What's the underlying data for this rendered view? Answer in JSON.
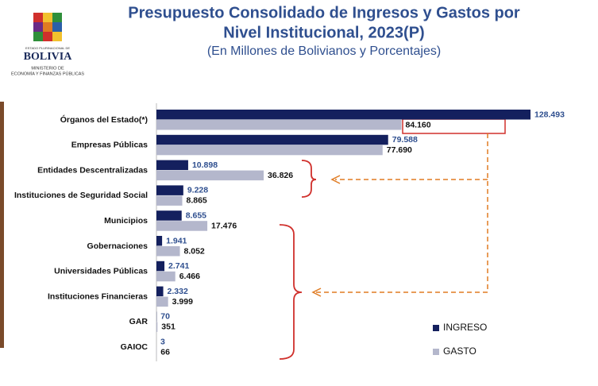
{
  "header": {
    "logo_top": "ESTADO PLURINACIONAL DE",
    "logo_name": "BOLIVIA",
    "logo_ministry": [
      "MINISTERIO DE",
      "ECONOMÍA Y FINANZAS PÚBLICAS"
    ]
  },
  "chart_data": {
    "type": "bar",
    "orientation": "horizontal",
    "title": [
      "Presupuesto Consolidado de Ingresos y Gastos por",
      "Nivel Institucional, 2023(P)"
    ],
    "subtitle": "(En Millones de Bolivianos y Porcentajes)",
    "categories": [
      "Órganos del Estado(*)",
      "Empresas Públicas",
      "Entidades Descentralizadas",
      "Instituciones de Seguridad Social",
      "Municipios",
      "Gobernaciones",
      "Universidades Públicas",
      "Instituciones Financieras",
      "GAR",
      "GAIOC"
    ],
    "series": [
      {
        "name": "INGRESO",
        "color": "#14205e",
        "label_color": "#2f4f8f",
        "values": [
          128493,
          79588,
          10898,
          9228,
          8655,
          1941,
          2741,
          2332,
          70,
          3
        ],
        "value_labels": [
          "128.493",
          "79.588",
          "10.898",
          "9.228",
          "8.655",
          "1.941",
          "2.741",
          "2.332",
          "70",
          "3"
        ]
      },
      {
        "name": "GASTO",
        "color": "#b4b7cc",
        "label_color": "#111111",
        "values": [
          84160,
          77690,
          36826,
          8865,
          17476,
          8052,
          6466,
          3999,
          351,
          66
        ],
        "value_labels": [
          "84.160",
          "77.690",
          "36.826",
          "8.865",
          "17.476",
          "8.052",
          "6.466",
          "3.999",
          "351",
          "66"
        ]
      }
    ],
    "legend": "bottom-right"
  }
}
